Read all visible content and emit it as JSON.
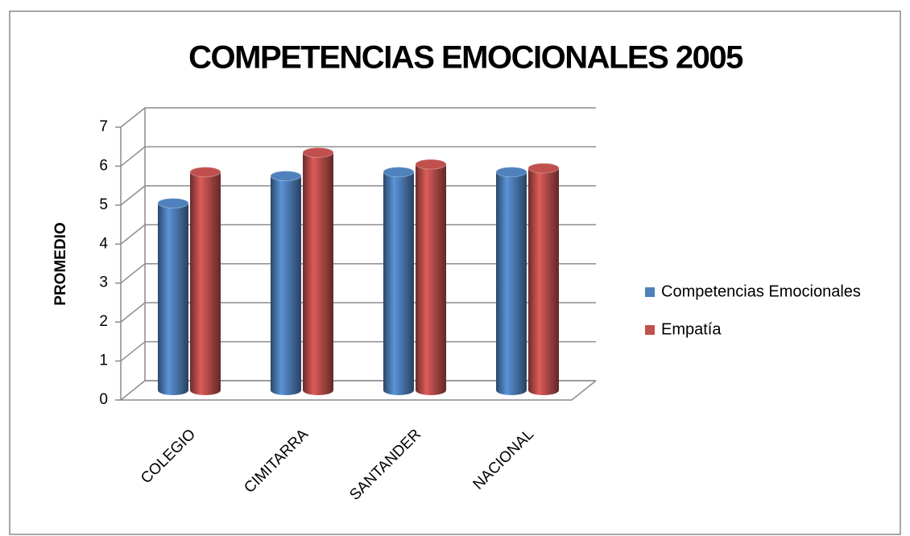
{
  "chart_data": {
    "type": "bar3d",
    "title": "COMPETENCIAS EMOCIONALES 2005",
    "y_label": "PROMEDIO",
    "categories": [
      "COLEGIO",
      "CIMITARRA",
      "SANTANDER",
      "NACIONAL"
    ],
    "series": [
      {
        "name": "Competencias Emocionales",
        "color": "#4f81bd",
        "values": [
          4.8,
          5.5,
          5.6,
          5.6
        ]
      },
      {
        "name": "Empatía",
        "color": "#c0504d",
        "values": [
          5.6,
          6.1,
          5.8,
          5.7
        ]
      }
    ],
    "ylim": [
      0,
      7
    ],
    "yticks": [
      0,
      1,
      2,
      3,
      4,
      5,
      6,
      7
    ],
    "grid": true,
    "legend": "right"
  }
}
